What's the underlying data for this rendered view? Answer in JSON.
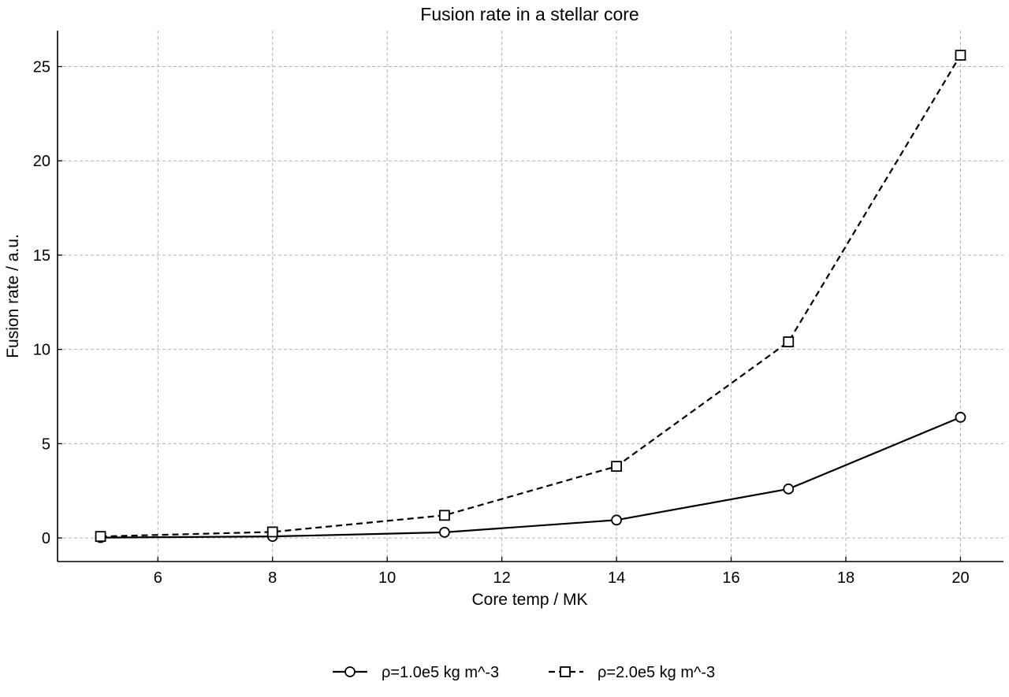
{
  "chart_data": {
    "type": "line",
    "title": "Fusion rate in a stellar core",
    "xlabel": "Core temp / MK",
    "ylabel": "Fusion rate / a.u.",
    "x": [
      5,
      8,
      11,
      14,
      17,
      20
    ],
    "series": [
      {
        "name": "ρ=1.0e5 kg m^-3",
        "values": [
          0.02,
          0.08,
          0.3,
          0.95,
          2.6,
          6.4
        ],
        "line_style": "solid",
        "marker": "circle",
        "color": "#000000"
      },
      {
        "name": "ρ=2.0e5 kg m^-3",
        "values": [
          0.08,
          0.32,
          1.2,
          3.8,
          10.4,
          25.6
        ],
        "line_style": "dashed",
        "marker": "square",
        "color": "#000000"
      }
    ],
    "xlim": [
      4.25,
      20.75
    ],
    "ylim": [
      -1.25,
      26.9
    ],
    "x_ticks": [
      6,
      8,
      10,
      12,
      14,
      16,
      18,
      20
    ],
    "y_ticks": [
      0,
      5,
      10,
      15,
      20,
      25
    ],
    "grid": true,
    "grid_color": "#b0b0b0",
    "legend_position": "bottom-center"
  }
}
